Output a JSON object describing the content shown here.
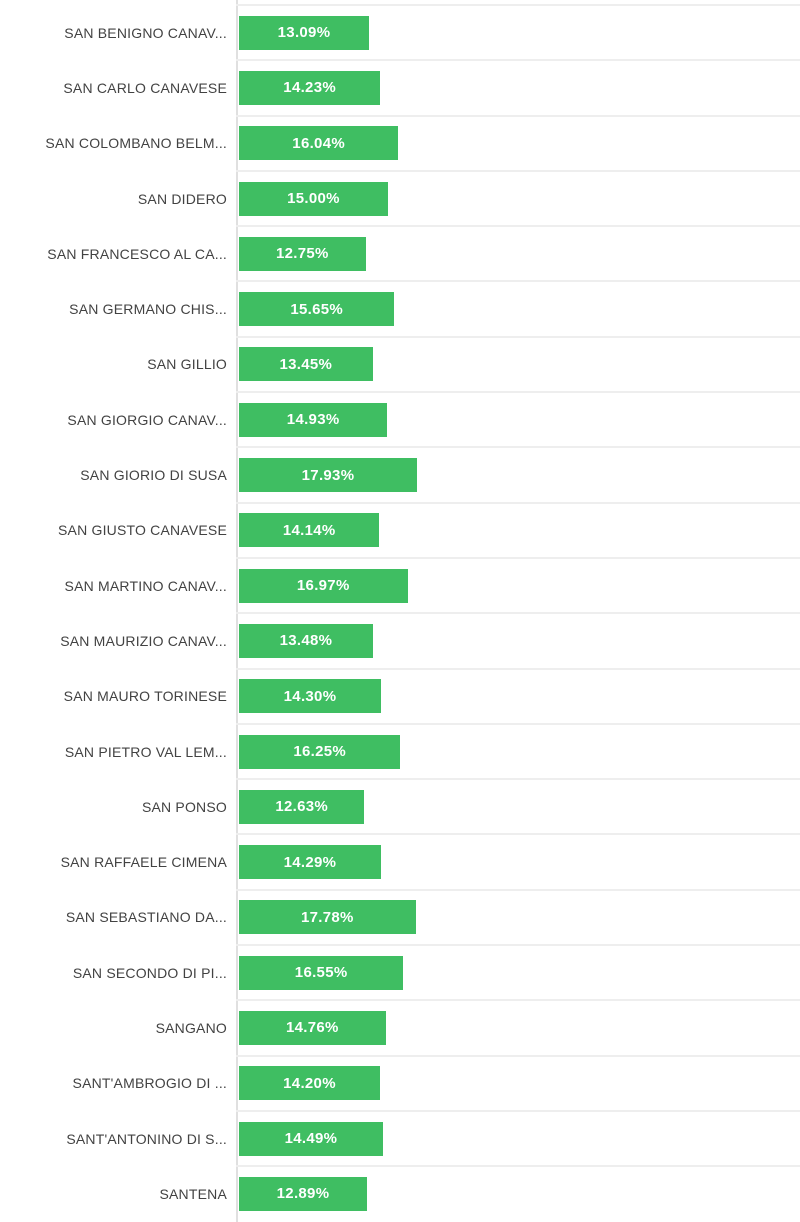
{
  "chart_data": {
    "type": "bar",
    "orientation": "horizontal",
    "title": "",
    "xlabel": "",
    "ylabel": "",
    "unit": "%",
    "grid": true,
    "legend": false,
    "xlim_visible": [
      0,
      56.5
    ],
    "categories": [
      "SAN BENIGNO CANAV...",
      "SAN CARLO CANAVESE",
      "SAN COLOMBANO BELM...",
      "SAN DIDERO",
      "SAN FRANCESCO AL CA...",
      "SAN GERMANO CHIS...",
      "SAN GILLIO",
      "SAN GIORGIO CANAV...",
      "SAN GIORIO DI SUSA",
      "SAN GIUSTO CANAVESE",
      "SAN MARTINO CANAV...",
      "SAN MAURIZIO CANAV...",
      "SAN MAURO TORINESE",
      "SAN PIETRO VAL LEM...",
      "SAN PONSO",
      "SAN RAFFAELE CIMENA",
      "SAN SEBASTIANO DA...",
      "SAN SECONDO DI PI...",
      "SANGANO",
      "SANT'AMBROGIO DI ...",
      "SANT'ANTONINO DI S...",
      "SANTENA"
    ],
    "values": [
      13.09,
      14.23,
      16.04,
      15.0,
      12.75,
      15.65,
      13.45,
      14.93,
      17.93,
      14.14,
      16.97,
      13.48,
      14.3,
      16.25,
      12.63,
      14.29,
      17.78,
      16.55,
      14.76,
      14.2,
      14.49,
      12.89
    ],
    "value_labels": [
      "13.09%",
      "14.23%",
      "16.04%",
      "15.00%",
      "12.75%",
      "15.65%",
      "13.45%",
      "14.93%",
      "17.93%",
      "14.14%",
      "16.97%",
      "13.48%",
      "14.30%",
      "16.25%",
      "12.63%",
      "14.29%",
      "17.78%",
      "16.55%",
      "14.76%",
      "14.20%",
      "14.49%",
      "12.89%"
    ]
  },
  "colors": {
    "bar_fill": "#3fbe62",
    "bar_value_text": "#ffffff",
    "category_text": "#424242",
    "gridline": "#eeeeee",
    "axis_line": "#e0e0e0",
    "background": "#ffffff"
  }
}
